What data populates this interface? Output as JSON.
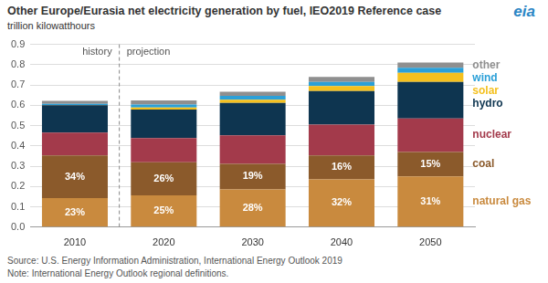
{
  "chart_data": {
    "type": "bar",
    "title": "Other Europe/Eurasia net electricity generation by fuel, IEO2019 Reference case",
    "subtitle": "trillion kilowatthours",
    "logo": "eia",
    "categories": [
      "2010",
      "2020",
      "2030",
      "2040",
      "2050"
    ],
    "series": [
      {
        "name": "natural gas",
        "color": "#c98a3e",
        "values": [
          0.143,
          0.156,
          0.186,
          0.235,
          0.25
        ],
        "share_labels": [
          "23%",
          "25%",
          "28%",
          "32%",
          "31%"
        ]
      },
      {
        "name": "coal",
        "color": "#8b5a2b",
        "values": [
          0.21,
          0.163,
          0.126,
          0.118,
          0.12
        ],
        "share_labels": [
          "34%",
          "26%",
          "19%",
          "16%",
          "15%"
        ]
      },
      {
        "name": "nuclear",
        "color": "#a33a4b",
        "values": [
          0.112,
          0.12,
          0.14,
          0.152,
          0.165
        ]
      },
      {
        "name": "hydro",
        "color": "#0e3550",
        "values": [
          0.135,
          0.14,
          0.16,
          0.165,
          0.18
        ]
      },
      {
        "name": "solar",
        "color": "#f4c01e",
        "values": [
          0.002,
          0.01,
          0.015,
          0.025,
          0.045
        ]
      },
      {
        "name": "wind",
        "color": "#2ba0d8",
        "values": [
          0.005,
          0.015,
          0.02,
          0.02,
          0.025
        ]
      },
      {
        "name": "other",
        "color": "#8f8f8f",
        "values": [
          0.015,
          0.02,
          0.02,
          0.025,
          0.025
        ]
      }
    ],
    "ylim": [
      0,
      0.9
    ],
    "yticks": [
      {
        "value": 0,
        "label": "0.0"
      },
      0.1,
      0.2,
      0.3,
      0.4,
      0.5,
      0.6,
      0.7,
      0.8,
      0.9
    ],
    "grid": true,
    "stacked": true,
    "legend": "right",
    "annotations": [
      "history",
      "projection"
    ],
    "projection_start": "2020",
    "source": "Source: U.S. Energy Information Administration, International Energy Outlook 2019",
    "note": "Note: International Energy Outlook regional definitions."
  }
}
